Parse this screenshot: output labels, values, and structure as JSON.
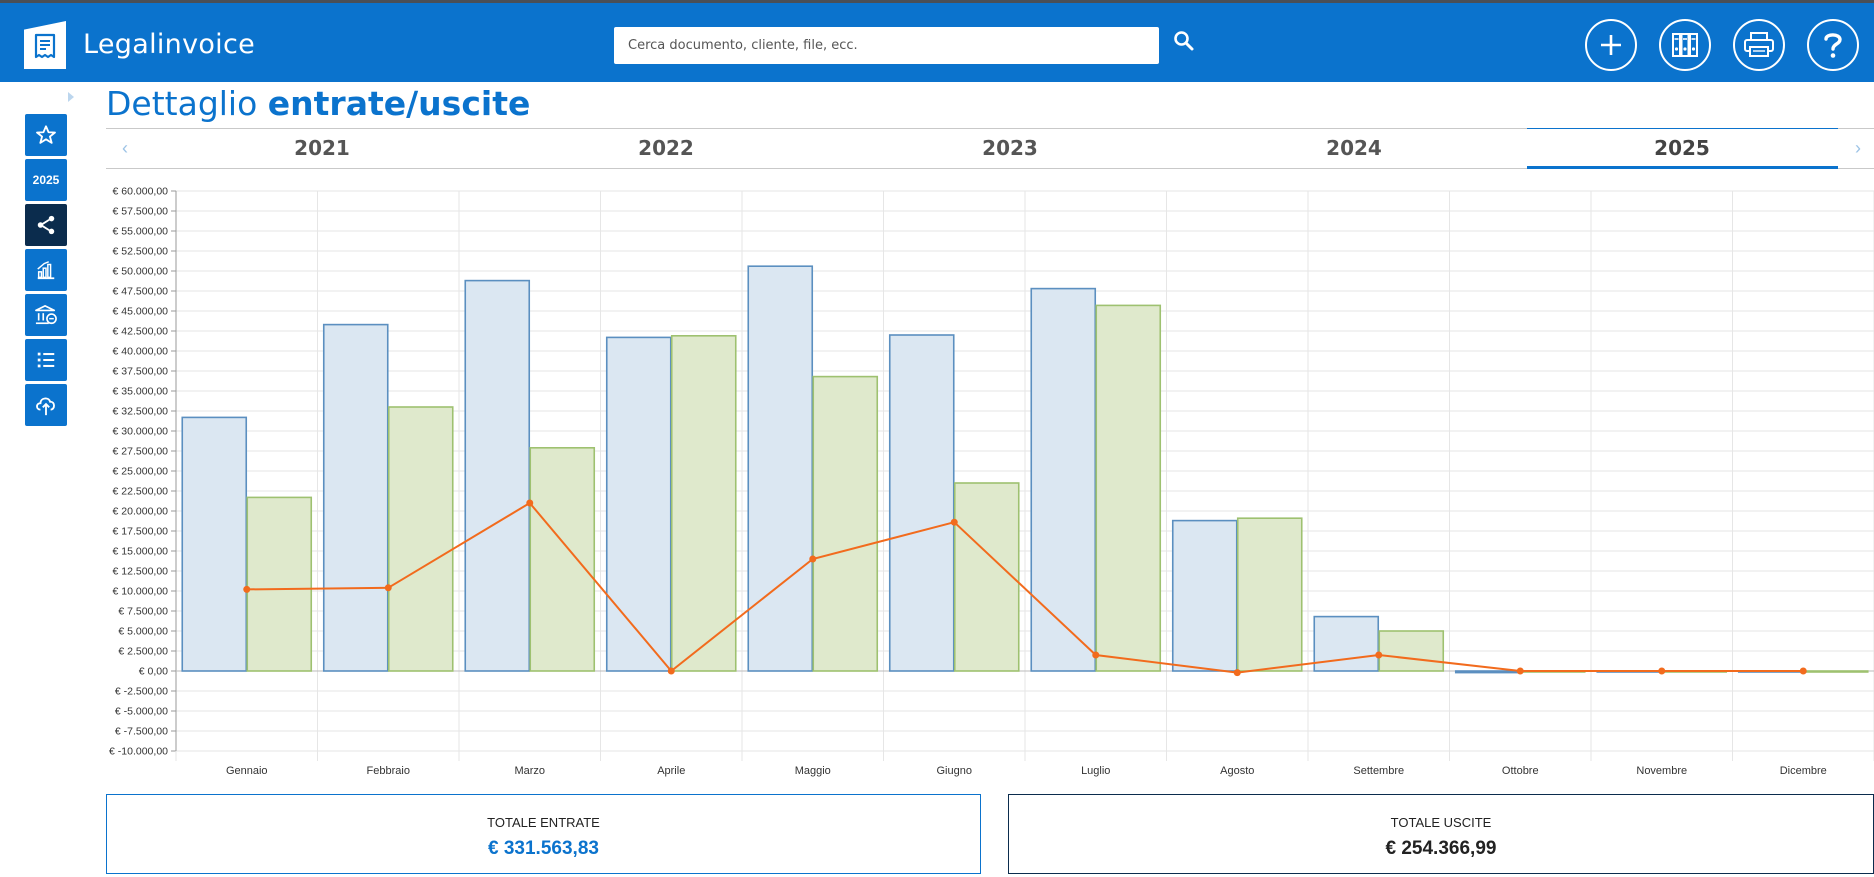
{
  "header": {
    "app_title": "Legalinvoice",
    "search_placeholder": "Cerca documento, cliente, file, ecc.",
    "icons": [
      "plus-icon",
      "binders-icon",
      "printer-icon",
      "help-icon"
    ]
  },
  "sidebar": {
    "items": [
      {
        "name": "star-icon",
        "label": ""
      },
      {
        "name": "year-badge",
        "label": "2025"
      },
      {
        "name": "share-icon",
        "label": ""
      },
      {
        "name": "chart-icon",
        "label": ""
      },
      {
        "name": "bank-icon",
        "label": ""
      },
      {
        "name": "list-icon",
        "label": ""
      },
      {
        "name": "cloud-upload-icon",
        "label": ""
      }
    ]
  },
  "page": {
    "title_plain": "Dettaglio ",
    "title_bold": "entrate/uscite"
  },
  "years": {
    "tabs": [
      "2021",
      "2022",
      "2023",
      "2024",
      "2025"
    ],
    "active": "2025"
  },
  "chart_data": {
    "type": "bar",
    "categories": [
      "Gennaio",
      "Febbraio",
      "Marzo",
      "Aprile",
      "Maggio",
      "Giugno",
      "Luglio",
      "Agosto",
      "Settembre",
      "Ottobre",
      "Novembre",
      "Dicembre"
    ],
    "series": [
      {
        "type": "bar",
        "color": "#5b8fc0",
        "fill": "#dbe7f2",
        "values": [
          31700,
          43300,
          48800,
          41700,
          50600,
          42000,
          47800,
          18800,
          6800,
          -200,
          -100,
          -50
        ]
      },
      {
        "type": "bar",
        "color": "#9ec170",
        "fill": "#dfe9cc",
        "values": [
          21700,
          33000,
          27900,
          41900,
          36800,
          23500,
          45700,
          19100,
          5000,
          0,
          0,
          -50
        ]
      },
      {
        "type": "line",
        "color": "#f26b1d",
        "values": [
          10200,
          10400,
          21000,
          0,
          14000,
          18600,
          2000,
          -200,
          2000,
          0,
          0,
          0
        ]
      }
    ],
    "ylim": [
      -10000,
      60000
    ],
    "ytick_step": 2500,
    "ytick_labels": [
      "€ -10.000,00",
      "€ -7.500,00",
      "€ -5.000,00",
      "€ -2.500,00",
      "€ 0,00",
      "€ 2.500,00",
      "€ 5.000,00",
      "€ 7.500,00",
      "€ 10.000,00",
      "€ 12.500,00",
      "€ 15.000,00",
      "€ 17.500,00",
      "€ 20.000,00",
      "€ 22.500,00",
      "€ 25.000,00",
      "€ 27.500,00",
      "€ 30.000,00",
      "€ 32.500,00",
      "€ 35.000,00",
      "€ 37.500,00",
      "€ 40.000,00",
      "€ 42.500,00",
      "€ 45.000,00",
      "€ 47.500,00",
      "€ 50.000,00",
      "€ 52.500,00",
      "€ 55.000,00",
      "€ 57.500,00",
      "€ 60.000,00"
    ],
    "grid": true
  },
  "totals": {
    "entrate_label": "TOTALE ENTRATE",
    "entrate_value": "€ 331.563,83",
    "uscite_label": "TOTALE USCITE",
    "uscite_value": "€ 254.366,99"
  }
}
